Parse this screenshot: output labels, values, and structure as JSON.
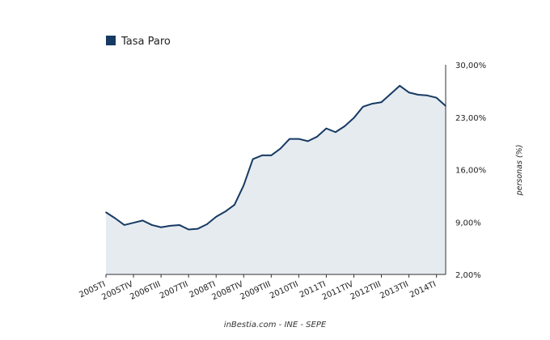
{
  "chart_data": {
    "type": "area",
    "series": [
      {
        "name": "Tasa Paro",
        "color": "#163a63",
        "fill_color": "#e6ebf0",
        "values": [
          10.3,
          9.5,
          8.6,
          8.9,
          9.2,
          8.6,
          8.3,
          8.5,
          8.6,
          8.0,
          8.1,
          8.7,
          9.7,
          10.4,
          11.3,
          13.9,
          17.4,
          17.9,
          17.9,
          18.8,
          20.1,
          20.1,
          19.8,
          20.4,
          21.5,
          21.0,
          21.8,
          22.9,
          24.4,
          24.8,
          25.0,
          26.1,
          27.2,
          26.3,
          26.0,
          25.9,
          25.6,
          24.5
        ]
      }
    ],
    "x_tick_labels": [
      "2005TI",
      "2005TIV",
      "2006TIII",
      "2007TII",
      "2008TI",
      "2008TIV",
      "2009TIII",
      "2010TII",
      "2011TI",
      "2011TIV",
      "2012TIII",
      "2013TII",
      "2014TI"
    ],
    "x_tick_step": 3,
    "y_ticks": [
      "2,00%",
      "9,00%",
      "16,00%",
      "23,00%",
      "30,00%"
    ],
    "ylim": [
      2,
      30
    ],
    "y_tick_values": [
      2,
      9,
      16,
      23,
      30
    ],
    "ylabel": "personas (%)",
    "y_axis_position": "right",
    "legend_placement": "top-left",
    "grid": false
  },
  "source": "inBestia.com - INE - SEPE"
}
